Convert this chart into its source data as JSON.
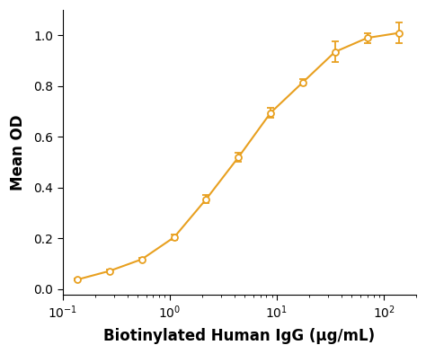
{
  "x": [
    0.137,
    0.274,
    0.548,
    1.1,
    2.19,
    4.38,
    8.75,
    17.5,
    35.0,
    70.0,
    140.0
  ],
  "y": [
    0.038,
    0.072,
    0.118,
    0.205,
    0.355,
    0.52,
    0.695,
    0.815,
    0.935,
    0.99,
    1.01
  ],
  "yerr": [
    0.004,
    0.005,
    0.006,
    0.012,
    0.015,
    0.018,
    0.018,
    0.012,
    0.04,
    0.02,
    0.04
  ],
  "color": "#E8A020",
  "marker": "o",
  "markersize": 5,
  "linewidth": 1.5,
  "xlabel": "Biotinylated Human IgG (μg/mL)",
  "ylabel": "Mean OD",
  "xlim": [
    0.1,
    200
  ],
  "ylim": [
    -0.02,
    1.1
  ],
  "yticks": [
    0.0,
    0.2,
    0.4,
    0.6,
    0.8,
    1.0
  ],
  "background_color": "#ffffff",
  "xlabel_fontsize": 12,
  "ylabel_fontsize": 12,
  "tick_fontsize": 10,
  "xlabel_fontweight": "bold",
  "ylabel_fontweight": "bold"
}
